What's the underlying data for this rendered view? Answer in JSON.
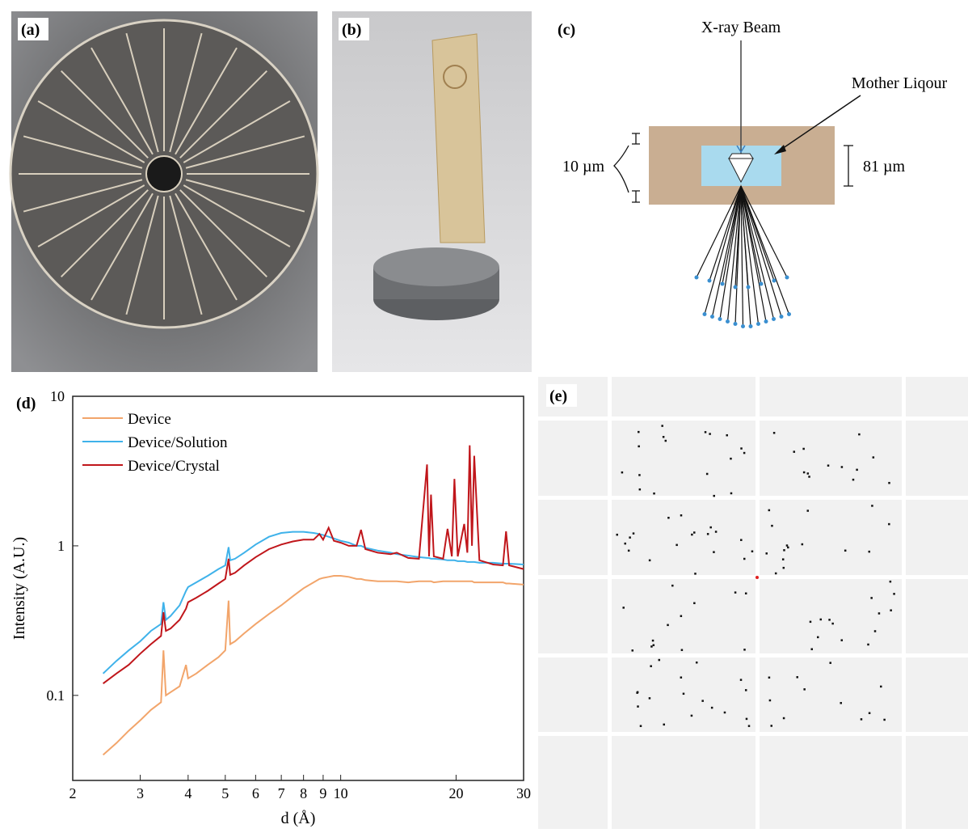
{
  "panel_labels": [
    "(a)",
    "(b)",
    "(c)",
    "(d)",
    "(e)"
  ],
  "diagram": {
    "beam": "X-ray Beam",
    "liquor": "Mother Liqour",
    "thickness": "10 µm",
    "depth": "81 µm"
  },
  "chart_data": {
    "type": "line",
    "xlabel": "d (Å)",
    "ylabel": "Intensity (A.U.)",
    "xlog": true,
    "ylog": true,
    "xlim": [
      2,
      30
    ],
    "ylim": [
      0.027,
      10
    ],
    "xticks": [
      2,
      3,
      4,
      5,
      6,
      7,
      8,
      9,
      10,
      20,
      30
    ],
    "yticks": [
      0.1,
      1,
      10
    ],
    "legend": "upper left",
    "x": [
      2.4,
      2.6,
      2.8,
      3.0,
      3.2,
      3.4,
      3.45,
      3.5,
      3.6,
      3.8,
      3.95,
      4.0,
      4.2,
      4.5,
      4.8,
      5.0,
      5.1,
      5.15,
      5.3,
      5.6,
      6.0,
      6.5,
      7.0,
      7.5,
      8.0,
      8.5,
      8.8,
      9.0,
      9.3,
      9.6,
      10.0,
      10.5,
      11.0,
      11.3,
      11.6,
      12.5,
      13.5,
      14.0,
      15,
      16,
      16.8,
      17.0,
      17.2,
      17.5,
      18.5,
      19.0,
      19.5,
      19.8,
      20.2,
      21.0,
      21.4,
      21.7,
      22.0,
      22.3,
      23.0,
      25.0,
      26.5,
      27.0,
      27.5,
      30
    ],
    "series": [
      {
        "name": "Device",
        "color": "#f2a56b",
        "values": [
          0.04,
          0.048,
          0.058,
          0.068,
          0.08,
          0.09,
          0.2,
          0.1,
          0.105,
          0.115,
          0.16,
          0.13,
          0.14,
          0.16,
          0.18,
          0.2,
          0.43,
          0.22,
          0.23,
          0.26,
          0.3,
          0.35,
          0.4,
          0.46,
          0.52,
          0.57,
          0.6,
          0.61,
          0.62,
          0.63,
          0.63,
          0.62,
          0.6,
          0.6,
          0.59,
          0.58,
          0.58,
          0.58,
          0.57,
          0.58,
          0.58,
          0.58,
          0.58,
          0.57,
          0.58,
          0.58,
          0.58,
          0.58,
          0.58,
          0.58,
          0.58,
          0.58,
          0.58,
          0.57,
          0.57,
          0.57,
          0.57,
          0.56,
          0.56,
          0.55
        ]
      },
      {
        "name": "Device/Solution",
        "color": "#3fb2ea",
        "values": [
          0.14,
          0.17,
          0.2,
          0.23,
          0.27,
          0.3,
          0.42,
          0.32,
          0.34,
          0.4,
          0.5,
          0.53,
          0.57,
          0.63,
          0.7,
          0.74,
          0.98,
          0.8,
          0.82,
          0.9,
          1.02,
          1.15,
          1.22,
          1.24,
          1.24,
          1.22,
          1.2,
          1.18,
          1.15,
          1.12,
          1.08,
          1.05,
          1.0,
          1.0,
          0.97,
          0.93,
          0.9,
          0.88,
          0.86,
          0.84,
          0.83,
          0.83,
          0.82,
          0.82,
          0.81,
          0.8,
          0.8,
          0.8,
          0.79,
          0.79,
          0.78,
          0.78,
          0.78,
          0.78,
          0.77,
          0.77,
          0.76,
          0.76,
          0.76,
          0.75
        ]
      },
      {
        "name": "Device/Crystal",
        "color": "#c0161b",
        "values": [
          0.12,
          0.14,
          0.16,
          0.19,
          0.22,
          0.25,
          0.36,
          0.27,
          0.28,
          0.32,
          0.38,
          0.42,
          0.45,
          0.5,
          0.56,
          0.6,
          0.82,
          0.64,
          0.66,
          0.74,
          0.84,
          0.95,
          1.02,
          1.07,
          1.1,
          1.1,
          1.2,
          1.1,
          1.32,
          1.08,
          1.05,
          1.0,
          1.0,
          1.28,
          0.95,
          0.9,
          0.88,
          0.9,
          0.83,
          0.82,
          3.5,
          0.85,
          2.2,
          0.85,
          0.82,
          1.3,
          0.85,
          2.8,
          0.85,
          1.4,
          0.9,
          4.7,
          1.0,
          4.0,
          0.8,
          0.75,
          0.74,
          1.25,
          0.74,
          0.7
        ]
      }
    ]
  }
}
